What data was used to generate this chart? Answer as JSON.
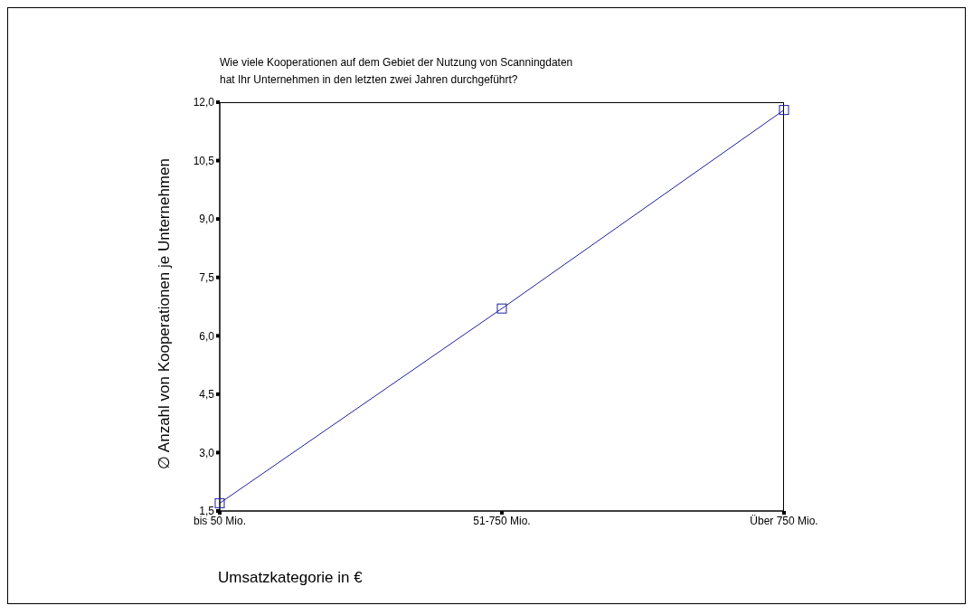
{
  "chart_data": {
    "type": "line",
    "title": "Wie viele Kooperationen auf dem Gebiet der Nutzung von Scanningdaten\nhat Ihr Unternehmen in den letzten zwei Jahren durchgeführt?",
    "xlabel": "Umsatzkategorie in €",
    "ylabel": "∅ Anzahl von Kooperationen je Unternehmen",
    "categories": [
      "bis 50 Mio.",
      "51-750 Mio.",
      "Über 750 Mio."
    ],
    "series": [
      {
        "color": "#1f1f9c",
        "values": [
          1.7,
          6.7,
          11.8
        ]
      }
    ],
    "ylim": [
      1.5,
      12
    ],
    "yticks": [
      {
        "value": 1.5,
        "label": "1,5"
      },
      {
        "value": 3,
        "label": "3,0"
      },
      {
        "value": 4.5,
        "label": "4,5"
      },
      {
        "value": 6,
        "label": "6,0"
      },
      {
        "value": 7.5,
        "label": "7,5"
      },
      {
        "value": 9,
        "label": "9,0"
      },
      {
        "value": 10.5,
        "label": "10,5"
      },
      {
        "value": 12,
        "label": "12,0"
      }
    ],
    "marker": "square",
    "line_style": "solid"
  }
}
